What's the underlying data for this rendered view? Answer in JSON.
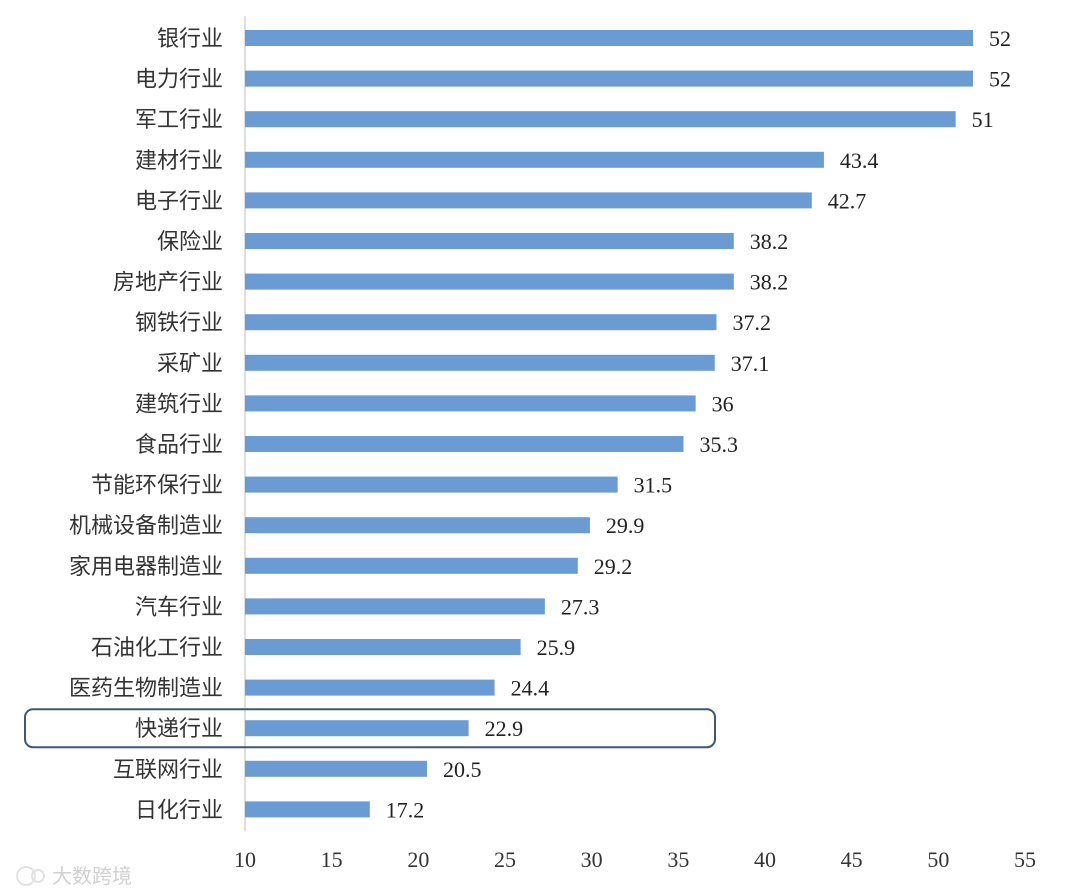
{
  "chart_data": {
    "type": "bar",
    "orientation": "horizontal",
    "categories": [
      "银行业",
      "电力行业",
      "军工行业",
      "建材行业",
      "电子行业",
      "保险业",
      "房地产行业",
      "钢铁行业",
      "采矿业",
      "建筑行业",
      "食品行业",
      "节能环保行业",
      "机械设备制造业",
      "家用电器制造业",
      "汽车行业",
      "石油化工行业",
      "医药生物制造业",
      "快递行业",
      "互联网行业",
      "日化行业"
    ],
    "values": [
      52,
      52,
      51,
      43.4,
      42.7,
      38.2,
      38.2,
      37.2,
      37.1,
      36,
      35.3,
      31.5,
      29.9,
      29.2,
      27.3,
      25.9,
      24.4,
      22.9,
      20.5,
      17.2
    ],
    "value_labels": [
      "52",
      "52",
      "51",
      "43.4",
      "42.7",
      "38.2",
      "38.2",
      "37.2",
      "37.1",
      "36",
      "35.3",
      "31.5",
      "29.9",
      "29.2",
      "27.3",
      "25.9",
      "24.4",
      "22.9",
      "20.5",
      "17.2"
    ],
    "xlim": [
      10,
      55
    ],
    "xticks": [
      "10",
      "15",
      "20",
      "25",
      "30",
      "35",
      "40",
      "45",
      "50",
      "55"
    ],
    "highlighted_category": "快递行业",
    "bar_color": "#6a9bd3",
    "grid": false,
    "title": "",
    "xlabel": "",
    "ylabel": ""
  },
  "watermark": {
    "text": "大数跨境",
    "icon": "brand-logo-icon"
  }
}
